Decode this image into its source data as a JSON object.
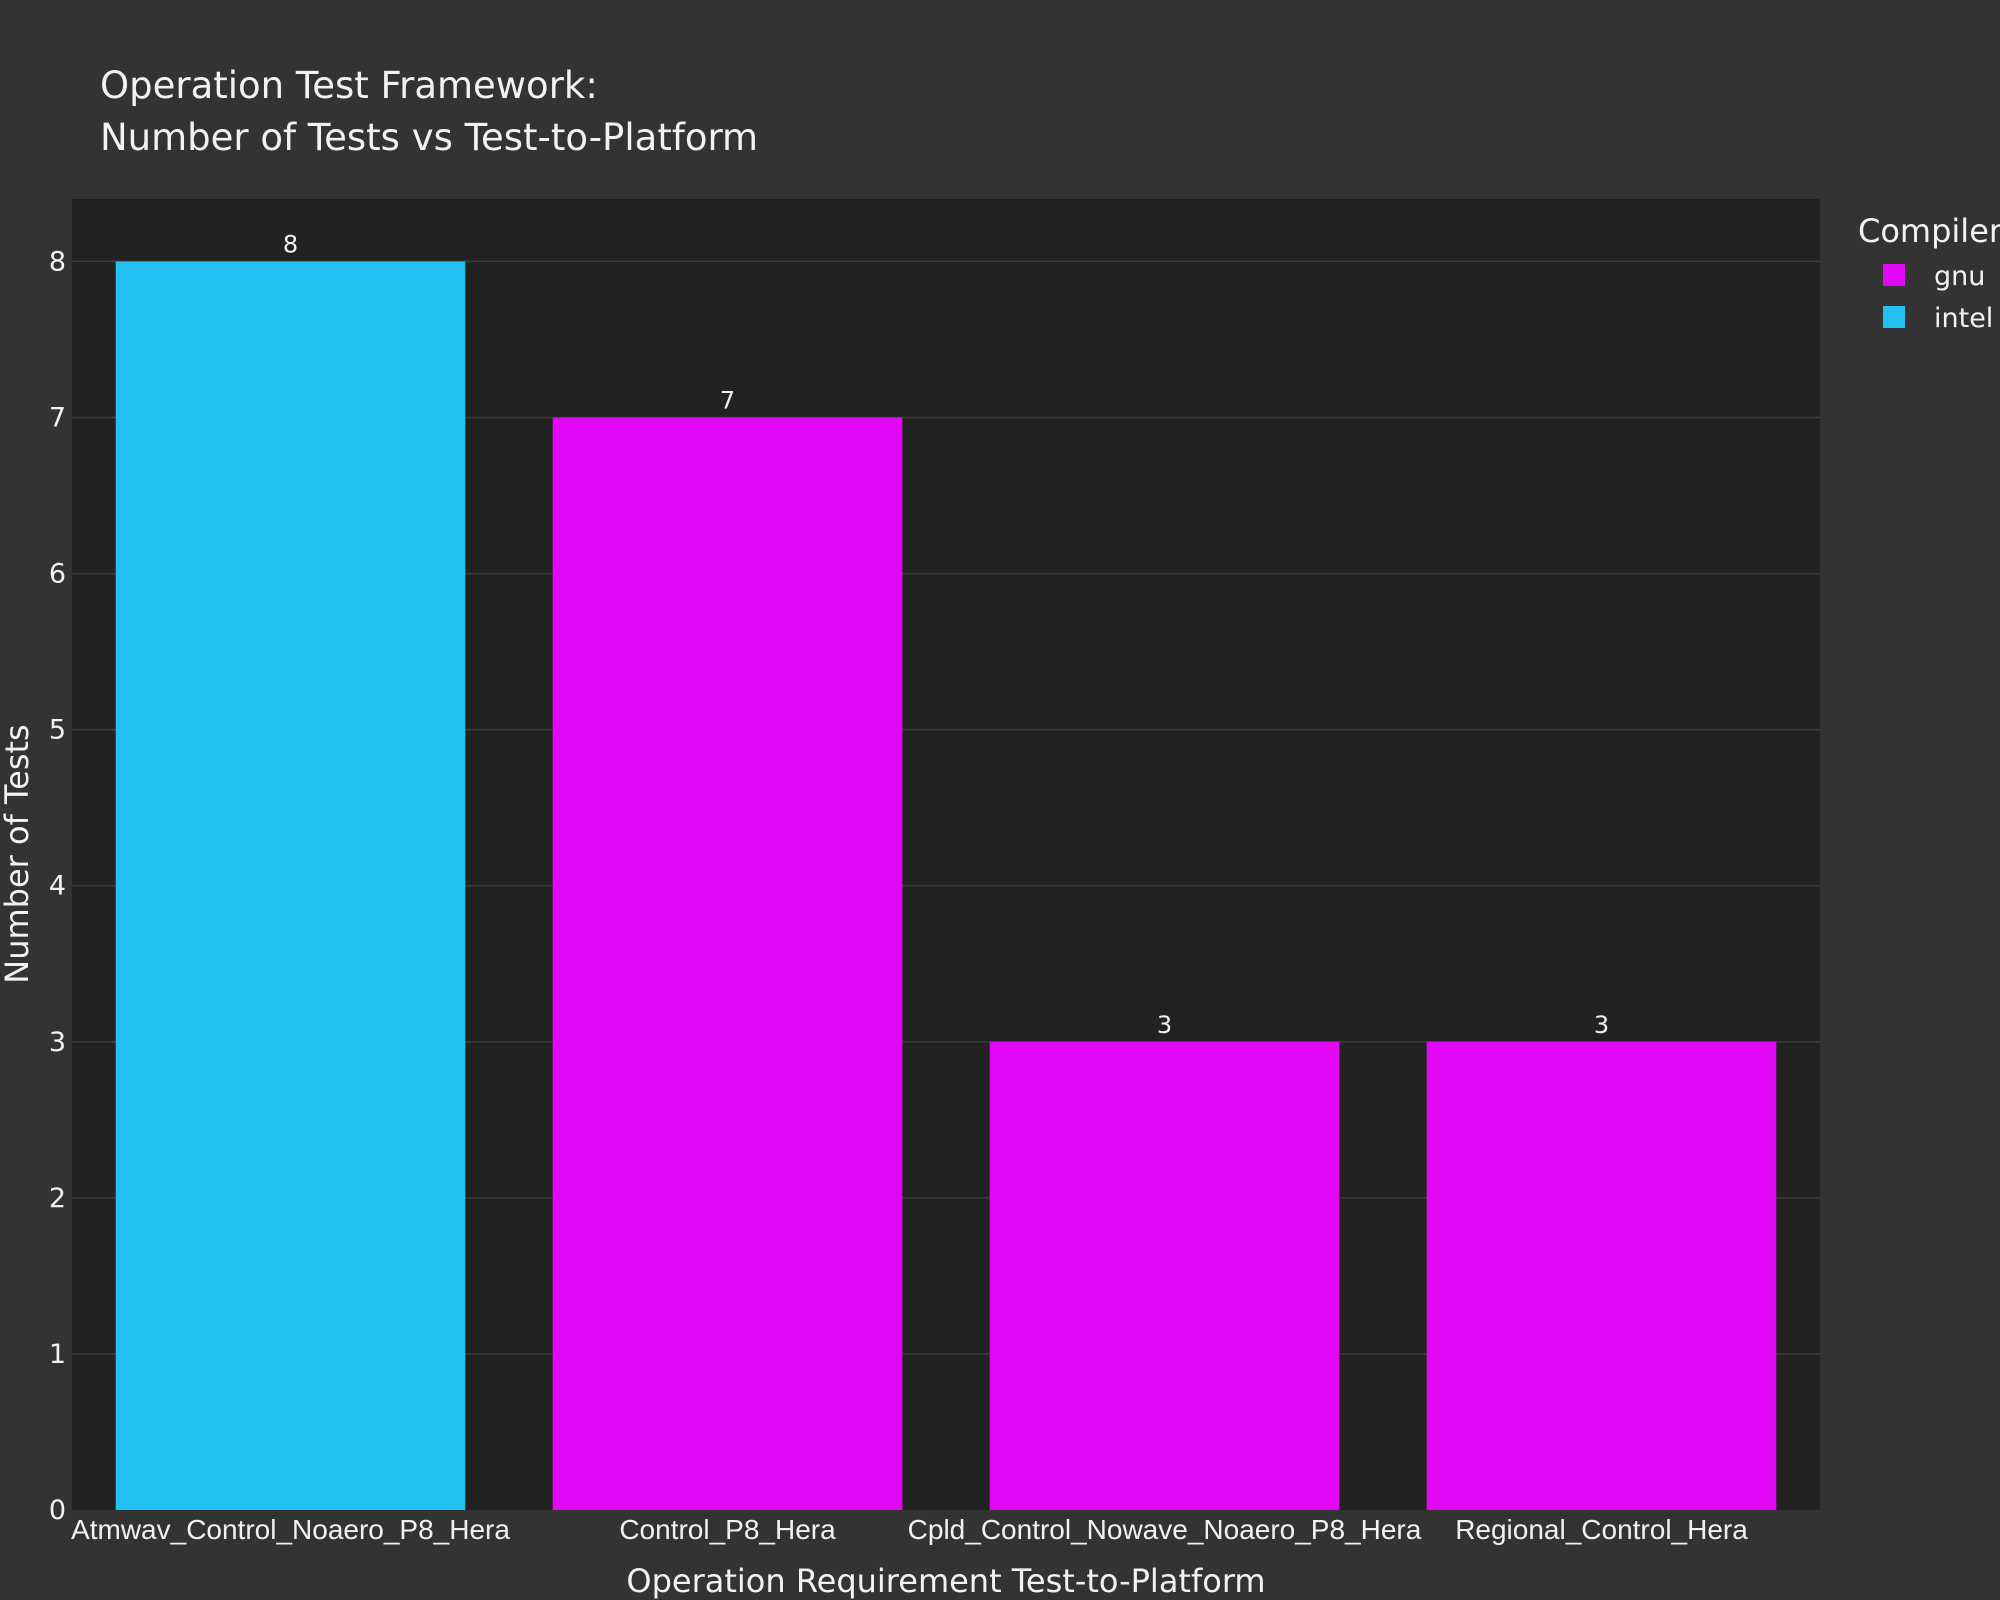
{
  "chart_data": {
    "type": "bar",
    "title_lines": [
      "Operation Test Framework:",
      "Number of Tests vs Test-to-Platform"
    ],
    "xlabel": "Operation Requirement Test-to-Platform",
    "ylabel": "Number of Tests",
    "categories": [
      "Atmwav_Control_Noaero_P8_Hera",
      "Control_P8_Hera",
      "Cpld_Control_Nowave_Noaero_P8_Hera",
      "Regional_Control_Hera"
    ],
    "values": [
      8,
      7,
      3,
      3
    ],
    "bar_series": [
      "intel",
      "gnu",
      "gnu",
      "gnu"
    ],
    "series": [
      {
        "name": "gnu",
        "color": "#e207f5"
      },
      {
        "name": "intel",
        "color": "#23c0f2"
      }
    ],
    "legend_title": "Compiler",
    "legend_position": "top-right",
    "ylim": [
      0,
      8.4
    ],
    "yticks": [
      0,
      1,
      2,
      3,
      4,
      5,
      6,
      7,
      8
    ],
    "grid": true,
    "colors": {
      "page_background": "#333333",
      "plot_background": "#222222",
      "text": "#f2f2f2"
    }
  }
}
